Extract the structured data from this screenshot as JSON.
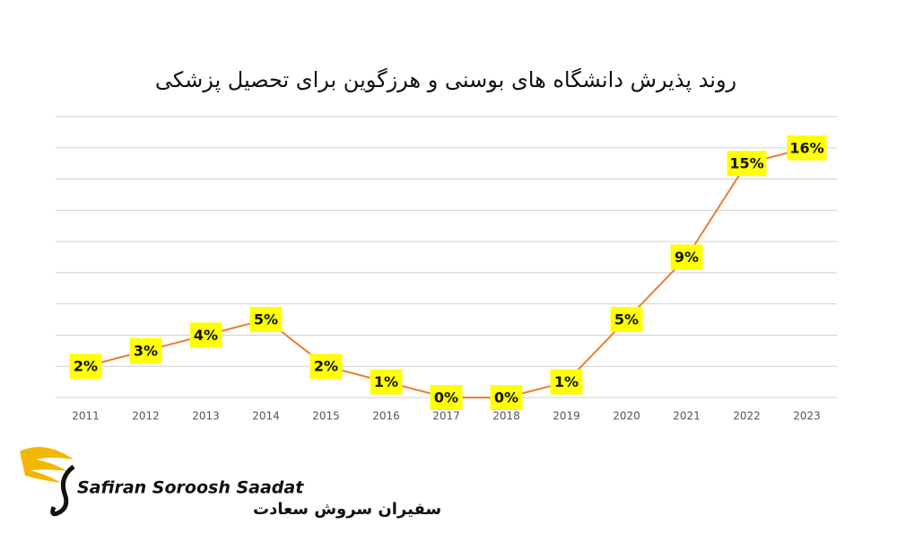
{
  "chart_data": {
    "type": "line",
    "title": "روند پذیرش دانشگاه های بوسنی و هرزگوین برای تحصیل پزشکی",
    "categories": [
      "2011",
      "2012",
      "2013",
      "2014",
      "2015",
      "2016",
      "2017",
      "2018",
      "2019",
      "2020",
      "2021",
      "2022",
      "2023"
    ],
    "values": [
      2,
      3,
      4,
      5,
      2,
      1,
      0,
      0,
      1,
      5,
      9,
      15,
      16
    ],
    "value_labels": [
      "2%",
      "3%",
      "4%",
      "5%",
      "2%",
      "1%",
      "0%",
      "0%",
      "1%",
      "5%",
      "9%",
      "15%",
      "16%"
    ],
    "color": "#ed7d31",
    "label_color": "#ffff00",
    "ylim": [
      0,
      18
    ],
    "yticks": [
      0,
      2,
      4,
      6,
      8,
      10,
      12,
      14,
      16,
      18
    ],
    "grid": true
  },
  "logo": {
    "name": "Safiran Soroosh Saadat",
    "name_fa": "سفیران سروش سعادت"
  }
}
